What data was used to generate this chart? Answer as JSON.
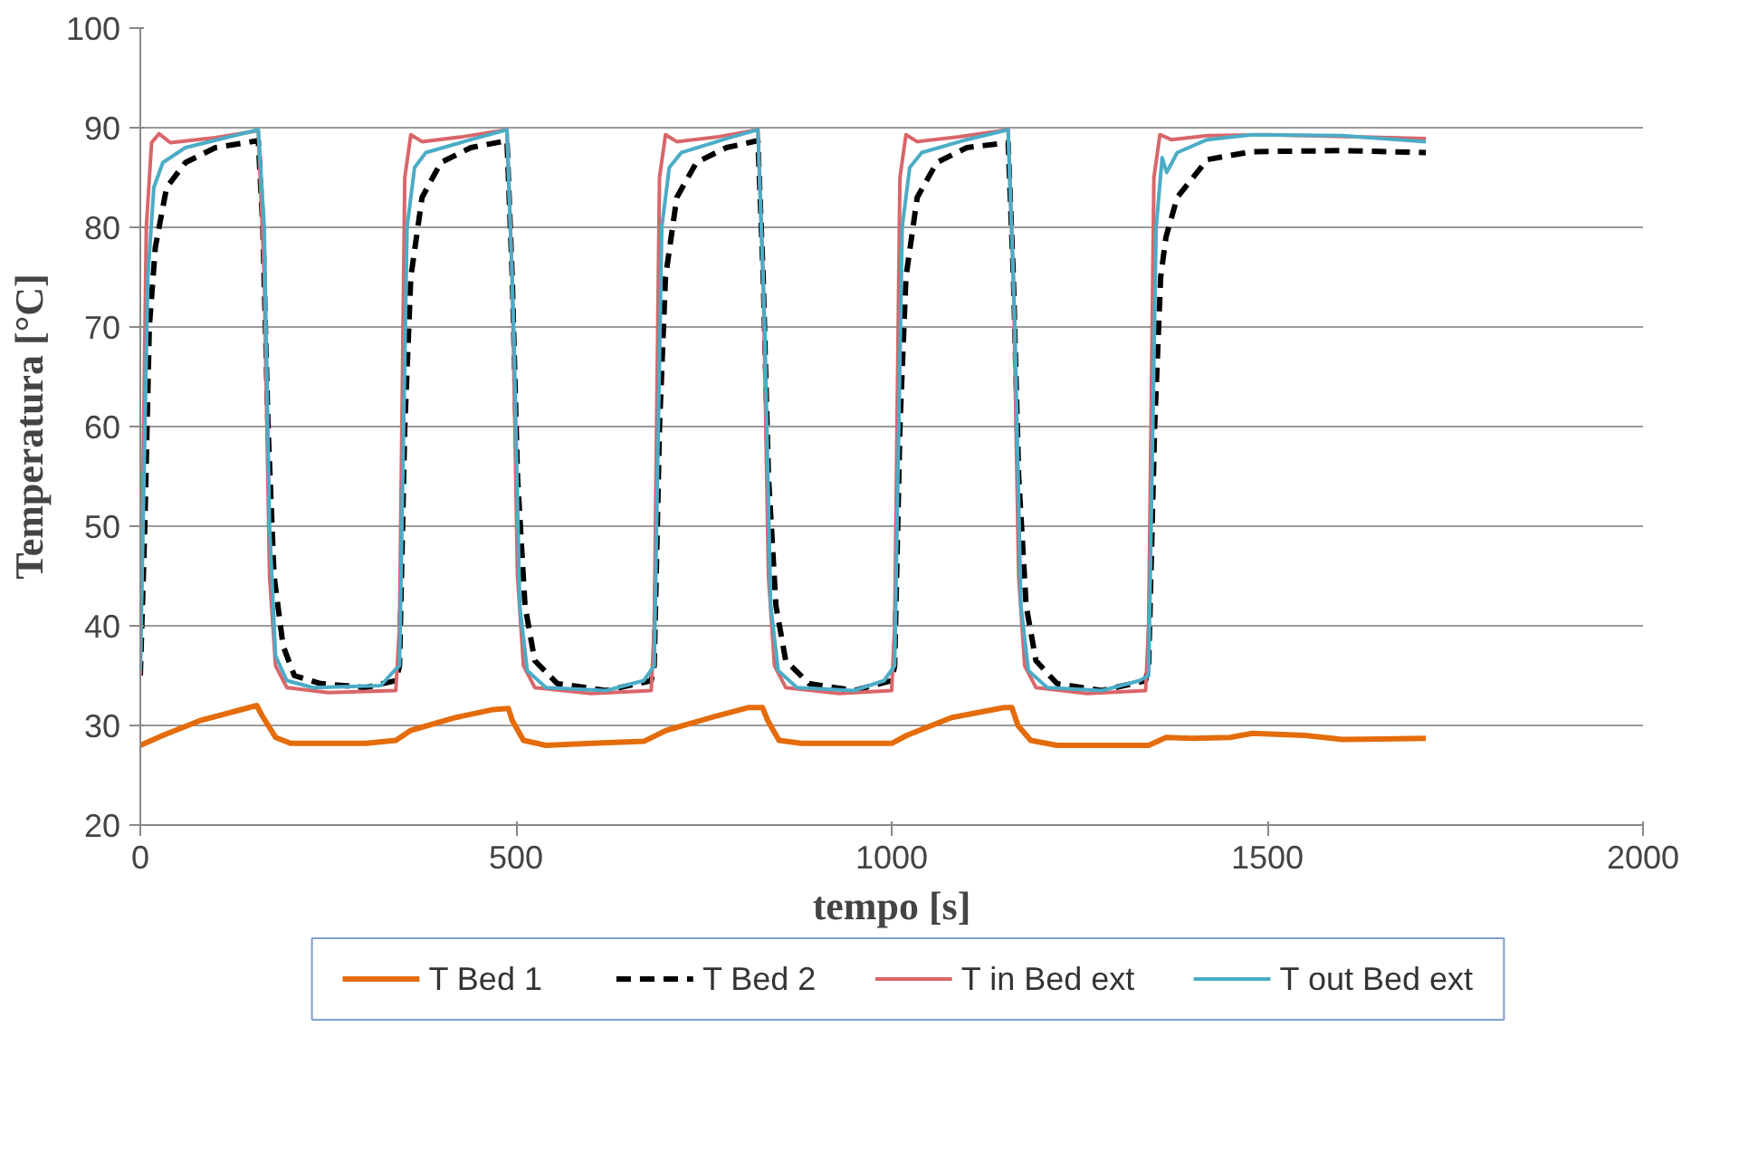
{
  "chart_data": {
    "type": "line",
    "xlabel": "tempo [s]",
    "ylabel": "Temperatura [°C]",
    "xlim": [
      0,
      2000
    ],
    "xticks": [
      0,
      500,
      1000,
      1500,
      2000
    ],
    "ylim": [
      20,
      100
    ],
    "yticks": [
      20,
      30,
      40,
      50,
      60,
      70,
      80,
      90,
      100
    ],
    "grid": "y",
    "legend": "bottom",
    "marker": "none",
    "series": [
      {
        "name": "T  Bed  1",
        "color": "#e46c0a",
        "line_style": "solid",
        "x": [
          0,
          30,
          80,
          130,
          155,
          162,
          180,
          200,
          300,
          340,
          360,
          420,
          470,
          490,
          495,
          510,
          540,
          600,
          670,
          700,
          760,
          810,
          828,
          835,
          850,
          880,
          1000,
          1020,
          1080,
          1150,
          1160,
          1168,
          1185,
          1220,
          1300,
          1342,
          1365,
          1400,
          1450,
          1480,
          1550,
          1600,
          1711
        ],
        "values": [
          28,
          29,
          30.5,
          31.5,
          32,
          31,
          28.8,
          28.2,
          28.2,
          28.5,
          29.5,
          30.8,
          31.6,
          31.7,
          30.5,
          28.5,
          28,
          28.2,
          28.4,
          29.5,
          30.8,
          31.8,
          31.8,
          30.5,
          28.5,
          28.2,
          28.2,
          29,
          30.8,
          31.8,
          31.8,
          30,
          28.5,
          28,
          28,
          28,
          28.8,
          28.7,
          28.8,
          29.2,
          29,
          28.6,
          28.7
        ]
      },
      {
        "name": "T  Bed 2",
        "color": "#000000",
        "line_style": "dashed",
        "x": [
          0,
          6,
          12,
          20,
          35,
          60,
          100,
          157,
          163,
          170,
          178,
          190,
          205,
          240,
          300,
          340,
          345,
          352,
          360,
          375,
          400,
          440,
          488,
          495,
          502,
          512,
          525,
          555,
          620,
          680,
          684,
          691,
          699,
          714,
          740,
          780,
          822,
          829,
          836,
          846,
          859,
          890,
          950,
          1000,
          1004,
          1011,
          1019,
          1034,
          1060,
          1100,
          1155,
          1162,
          1169,
          1179,
          1192,
          1220,
          1280,
          1338,
          1342,
          1350,
          1358,
          1365,
          1380,
          1420,
          1480,
          1600,
          1711
        ],
        "values": [
          35,
          50,
          70,
          78,
          84,
          86.5,
          88,
          88.7,
          80,
          60,
          45,
          38,
          35,
          34.2,
          33.8,
          34.5,
          36,
          60,
          75,
          83,
          86.5,
          88,
          88.7,
          75,
          55,
          42,
          36.5,
          34.2,
          33.5,
          34.5,
          36,
          60,
          75,
          83,
          86.5,
          88,
          88.7,
          75,
          55,
          42,
          36.5,
          34.2,
          33.5,
          34.5,
          36,
          60,
          75,
          83,
          86.5,
          88,
          88.5,
          75,
          55,
          42,
          36.5,
          34.2,
          33.5,
          34.5,
          36,
          60,
          75,
          79,
          83,
          86.8,
          87.6,
          87.7,
          87.5
        ]
      },
      {
        "name": "T in Bed ext",
        "color": "#d9666a",
        "line_style": "solid",
        "x": [
          0,
          8,
          15,
          25,
          40,
          100,
          157,
          165,
          172,
          180,
          195,
          250,
          340,
          345,
          352,
          360,
          375,
          430,
          488,
          495,
          502,
          510,
          525,
          600,
          680,
          684,
          691,
          699,
          714,
          770,
          822,
          829,
          836,
          844,
          859,
          930,
          1000,
          1004,
          1011,
          1019,
          1034,
          1090,
          1155,
          1162,
          1169,
          1177,
          1192,
          1260,
          1338,
          1342,
          1349,
          1357,
          1372,
          1420,
          1500,
          1711
        ],
        "values": [
          35,
          80,
          88.5,
          89.4,
          88.5,
          89,
          89.7,
          75,
          45,
          36,
          33.8,
          33.3,
          33.5,
          40,
          85,
          89.3,
          88.6,
          89.1,
          89.8,
          75,
          45,
          36,
          33.8,
          33.2,
          33.5,
          40,
          85,
          89.3,
          88.6,
          89.1,
          89.8,
          75,
          45,
          36,
          33.8,
          33.2,
          33.5,
          40,
          85,
          89.3,
          88.6,
          89.1,
          89.8,
          75,
          45,
          36,
          33.8,
          33.2,
          33.5,
          40,
          85,
          89.3,
          88.8,
          89.2,
          89.3,
          88.9
        ]
      },
      {
        "name": "T out Bed ext",
        "color": "#4bacc6",
        "line_style": "solid",
        "x": [
          0,
          10,
          18,
          30,
          60,
          157,
          165,
          172,
          180,
          195,
          230,
          320,
          338,
          345,
          355,
          365,
          380,
          440,
          488,
          497,
          505,
          515,
          540,
          620,
          670,
          684,
          694,
          704,
          720,
          780,
          822,
          831,
          839,
          849,
          874,
          950,
          990,
          1004,
          1014,
          1024,
          1040,
          1100,
          1155,
          1164,
          1172,
          1182,
          1207,
          1280,
          1330,
          1342,
          1352,
          1360,
          1366,
          1380,
          1420,
          1480,
          1600,
          1711
        ],
        "values": [
          35.5,
          75,
          84,
          86.5,
          88,
          89.8,
          80,
          50,
          37,
          34.5,
          33.8,
          34,
          35.5,
          36,
          80,
          86,
          87.5,
          88.8,
          89.8,
          70,
          42,
          35.5,
          33.8,
          33.5,
          34.5,
          36,
          80,
          86,
          87.5,
          88.9,
          89.8,
          70,
          42,
          35.5,
          33.8,
          33.5,
          34.5,
          36,
          80,
          86,
          87.5,
          88.8,
          89.8,
          70,
          42,
          35.5,
          33.8,
          33.5,
          34.5,
          35,
          80,
          87,
          85.5,
          87.5,
          88.8,
          89.3,
          89.2,
          88.6
        ]
      }
    ]
  }
}
